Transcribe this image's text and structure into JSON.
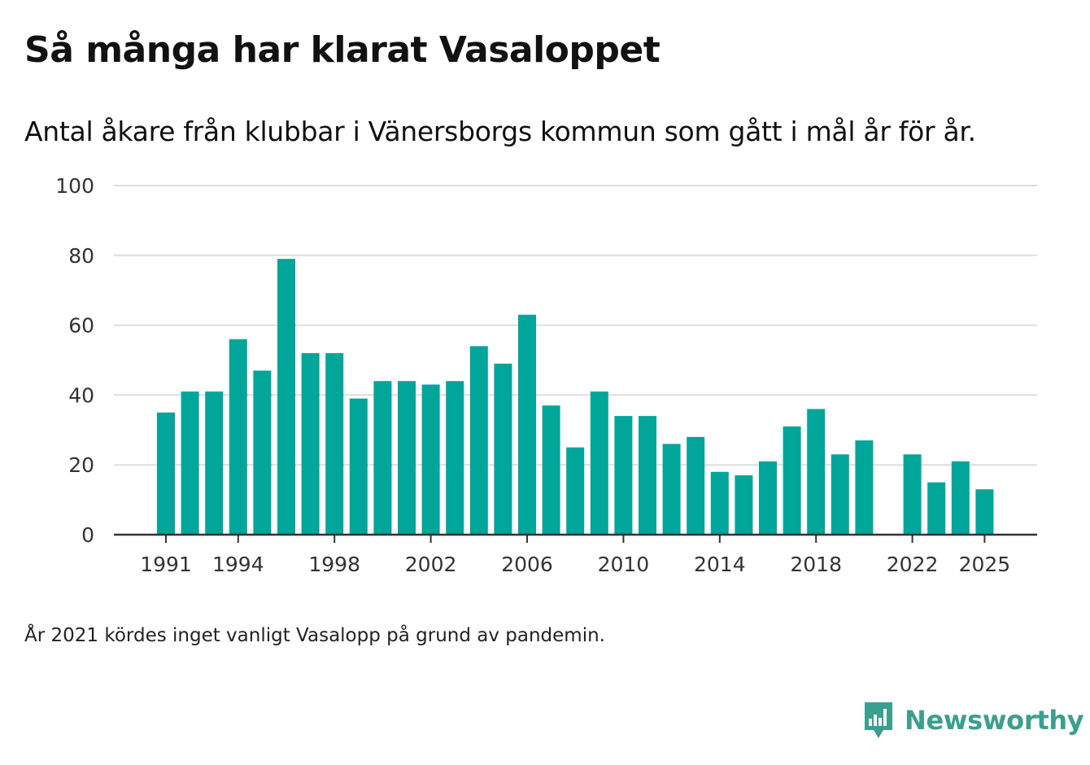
{
  "title": "Så många har klarat Vasaloppet",
  "subtitle": "Antal åkare från klubbar i Vänersborgs kommun som gått i mål år för år.",
  "note": "År 2021 kördes inget vanligt Vasalopp på grund av pandemin.",
  "brand": {
    "name": "Newsworthy",
    "icon": "newsworthy-logo-icon",
    "color": "#3a9f8e"
  },
  "colors": {
    "bar": "#00a699",
    "grid": "#dddddd",
    "axis": "#333333",
    "tick_text": "#333333"
  },
  "chart_data": {
    "type": "bar",
    "title": "Så många har klarat Vasaloppet",
    "xlabel": "",
    "ylabel": "",
    "ylim": [
      0,
      100
    ],
    "yticks": [
      0,
      20,
      40,
      60,
      80,
      100
    ],
    "xticks": [
      1991,
      1994,
      1998,
      2002,
      2006,
      2010,
      2014,
      2018,
      2022,
      2025
    ],
    "grid": true,
    "categories": [
      1991,
      1992,
      1993,
      1994,
      1995,
      1996,
      1997,
      1998,
      1999,
      2000,
      2001,
      2002,
      2003,
      2004,
      2005,
      2006,
      2007,
      2008,
      2009,
      2010,
      2011,
      2012,
      2013,
      2014,
      2015,
      2016,
      2017,
      2018,
      2019,
      2020,
      2021,
      2022,
      2023,
      2024,
      2025
    ],
    "values": [
      35,
      41,
      41,
      56,
      47,
      79,
      52,
      52,
      39,
      44,
      44,
      43,
      44,
      54,
      49,
      63,
      37,
      25,
      41,
      34,
      34,
      26,
      28,
      18,
      17,
      21,
      31,
      36,
      23,
      27,
      null,
      23,
      15,
      21,
      13
    ]
  }
}
